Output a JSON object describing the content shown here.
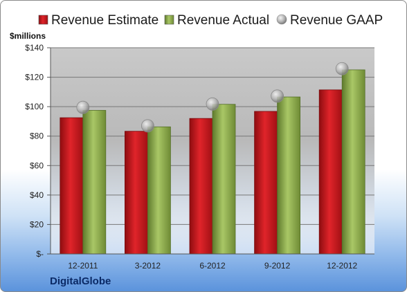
{
  "company": "DigitalGlobe",
  "chart_data": {
    "type": "bar",
    "unit_label": "$millions",
    "categories": [
      "12-2011",
      "3-2012",
      "6-2012",
      "9-2012",
      "12-2012"
    ],
    "series": [
      {
        "name": "Revenue Estimate",
        "kind": "bar",
        "color": "#c8141c",
        "values": [
          92.5,
          83.3,
          92.0,
          96.8,
          111.4
        ]
      },
      {
        "name": "Revenue Actual",
        "kind": "bar",
        "color": "#8fb04a",
        "values": [
          97.5,
          86.3,
          101.6,
          106.6,
          125.0
        ]
      },
      {
        "name": "Revenue GAAP",
        "kind": "marker",
        "color": "#b8b8b8",
        "values": [
          99.5,
          87.0,
          101.8,
          107.2,
          125.8
        ]
      }
    ],
    "ylim": [
      0,
      140
    ],
    "yticks": [
      0,
      20,
      40,
      60,
      80,
      100,
      120,
      140
    ],
    "ytick_labels": [
      "$-",
      "$20",
      "$40",
      "$60",
      "$80",
      "$100",
      "$120",
      "$140"
    ],
    "grid": true,
    "legend_position": "top"
  }
}
